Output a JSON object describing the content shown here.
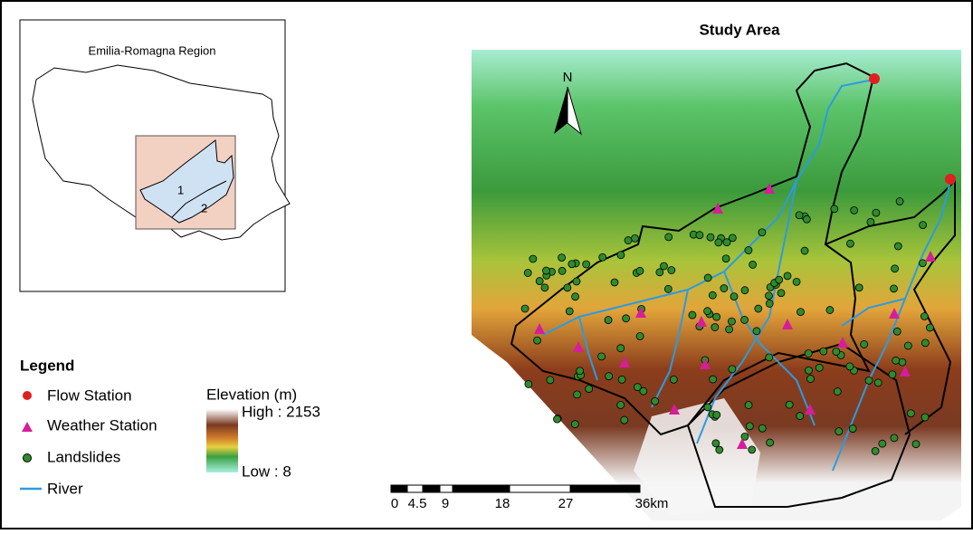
{
  "inset": {
    "title": "Emilia-Romagna Region",
    "labels": [
      "1",
      "2"
    ]
  },
  "map": {
    "title": "Study Area",
    "north": "N"
  },
  "legend": {
    "title": "Legend",
    "items": [
      "Flow Station",
      "Weather Station",
      "Landslides",
      "River"
    ],
    "elevation": {
      "title": "Elevation (m)",
      "high": "High : 2153",
      "low": "Low : 8"
    }
  },
  "scale_bar": {
    "labels": [
      "0",
      "4.5",
      "9",
      "18",
      "27",
      "36km"
    ]
  }
}
